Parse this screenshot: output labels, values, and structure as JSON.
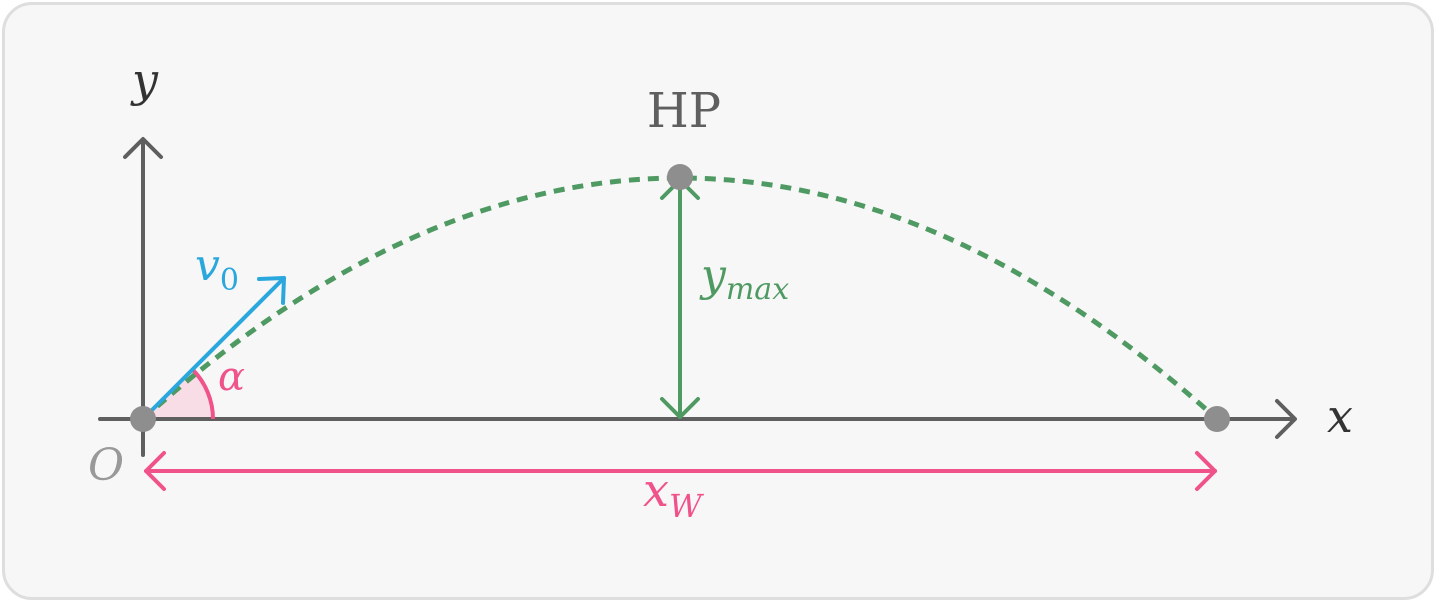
{
  "labels": {
    "y_axis": "y",
    "x_axis": "x",
    "origin": "O",
    "highest_point": "HP",
    "velocity_base": "v",
    "velocity_sub": "0",
    "angle": "α",
    "ymax_base": "y",
    "ymax_sub": "max",
    "range_base": "x",
    "range_sub": "W"
  },
  "colors": {
    "axis": "#5f5f5f",
    "point": "#8e8e8e",
    "trajectory": "#4f9a62",
    "velocity": "#2aa7dc",
    "angle": "#f0528a",
    "angle_fill": "#f9dde6",
    "frame_bg": "#f7f7f7",
    "frame_border": "#dedede",
    "origin_label": "#999999",
    "hp_label": "#5f5f5f"
  }
}
